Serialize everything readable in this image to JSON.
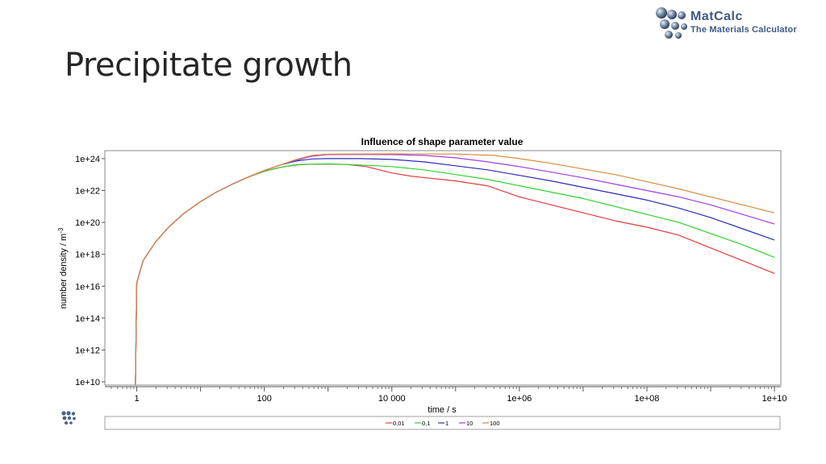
{
  "slide": {
    "title": "Precipitate growth"
  },
  "logo": {
    "line1": "MatCalc",
    "line2": "The Materials Calculator"
  },
  "colors": {
    "series_0_01": "#e23b3b",
    "series_0_1": "#2fd12f",
    "series_1": "#2b2bb8",
    "series_10": "#9f3fe6",
    "series_100": "#d98a3e"
  },
  "chart_data": {
    "type": "line",
    "title": "Influence of shape parameter value",
    "xlabel": "time / s",
    "ylabel": "number density / m",
    "ylabel_superscript": "-3",
    "xscale": "log",
    "yscale": "log",
    "xlim_log10": [
      -0.5,
      10.1
    ],
    "ylim_log10": [
      9.8,
      24.5
    ],
    "xticks": [
      {
        "log": 0,
        "label": "1"
      },
      {
        "log": 2,
        "label": "100"
      },
      {
        "log": 4,
        "label": "10 000"
      },
      {
        "log": 6,
        "label": "1e+06"
      },
      {
        "log": 8,
        "label": "1e+08"
      },
      {
        "log": 10,
        "label": "1e+10"
      }
    ],
    "yticks": [
      {
        "log": 10,
        "label": "1e+10"
      },
      {
        "log": 12,
        "label": "1e+12"
      },
      {
        "log": 14,
        "label": "1e+14"
      },
      {
        "log": 16,
        "label": "1e+16"
      },
      {
        "log": 18,
        "label": "1e+18"
      },
      {
        "log": 20,
        "label": "1e+20"
      },
      {
        "log": 22,
        "label": "1e+22"
      },
      {
        "log": 24,
        "label": "1e+24"
      }
    ],
    "legend_position": "bottom",
    "series": [
      {
        "name": "0,01",
        "color": "#e23b3b",
        "points": [
          [
            -0.02,
            9.8
          ],
          [
            0,
            16.2
          ],
          [
            0.1,
            17.6
          ],
          [
            0.3,
            18.8
          ],
          [
            0.5,
            19.7
          ],
          [
            0.75,
            20.6
          ],
          [
            1,
            21.3
          ],
          [
            1.25,
            21.9
          ],
          [
            1.5,
            22.4
          ],
          [
            1.75,
            22.85
          ],
          [
            2,
            23.2
          ],
          [
            2.25,
            23.45
          ],
          [
            2.5,
            23.6
          ],
          [
            2.75,
            23.65
          ],
          [
            3,
            23.66
          ],
          [
            3.3,
            23.63
          ],
          [
            3.6,
            23.5
          ],
          [
            4,
            23.1
          ],
          [
            4.3,
            22.9
          ],
          [
            5,
            22.6
          ],
          [
            5.5,
            22.3
          ],
          [
            6,
            21.6
          ],
          [
            6.5,
            21.1
          ],
          [
            7,
            20.6
          ],
          [
            7.5,
            20.1
          ],
          [
            8,
            19.7
          ],
          [
            8.5,
            19.2
          ],
          [
            9,
            18.4
          ],
          [
            9.5,
            17.6
          ],
          [
            10,
            16.8
          ]
        ]
      },
      {
        "name": "0,1",
        "color": "#2fd12f",
        "points": [
          [
            -0.02,
            9.8
          ],
          [
            0,
            16.2
          ],
          [
            0.1,
            17.6
          ],
          [
            0.3,
            18.8
          ],
          [
            0.5,
            19.7
          ],
          [
            0.75,
            20.6
          ],
          [
            1,
            21.3
          ],
          [
            1.25,
            21.9
          ],
          [
            1.5,
            22.4
          ],
          [
            1.75,
            22.85
          ],
          [
            2,
            23.2
          ],
          [
            2.25,
            23.45
          ],
          [
            2.5,
            23.62
          ],
          [
            3,
            23.67
          ],
          [
            3.5,
            23.6
          ],
          [
            4,
            23.5
          ],
          [
            4.5,
            23.3
          ],
          [
            5,
            23.0
          ],
          [
            5.5,
            22.7
          ],
          [
            6,
            22.3
          ],
          [
            6.5,
            21.9
          ],
          [
            7,
            21.5
          ],
          [
            7.5,
            21.0
          ],
          [
            8,
            20.5
          ],
          [
            8.5,
            20.0
          ],
          [
            9,
            19.3
          ],
          [
            9.5,
            18.6
          ],
          [
            10,
            17.8
          ]
        ]
      },
      {
        "name": "1",
        "color": "#2b2bb8",
        "points": [
          [
            -0.02,
            9.8
          ],
          [
            0,
            16.2
          ],
          [
            0.1,
            17.6
          ],
          [
            0.3,
            18.8
          ],
          [
            0.5,
            19.7
          ],
          [
            0.75,
            20.6
          ],
          [
            1,
            21.3
          ],
          [
            1.25,
            21.9
          ],
          [
            1.5,
            22.4
          ],
          [
            1.75,
            22.85
          ],
          [
            2,
            23.25
          ],
          [
            2.25,
            23.6
          ],
          [
            2.5,
            23.85
          ],
          [
            2.75,
            23.98
          ],
          [
            3,
            24.0
          ],
          [
            3.5,
            24.0
          ],
          [
            4,
            23.95
          ],
          [
            4.5,
            23.8
          ],
          [
            5,
            23.55
          ],
          [
            5.5,
            23.3
          ],
          [
            6,
            22.95
          ],
          [
            6.5,
            22.6
          ],
          [
            7,
            22.2
          ],
          [
            7.5,
            21.8
          ],
          [
            8,
            21.4
          ],
          [
            8.5,
            20.9
          ],
          [
            9,
            20.3
          ],
          [
            9.5,
            19.6
          ],
          [
            10,
            18.9
          ]
        ]
      },
      {
        "name": "10",
        "color": "#9f3fe6",
        "points": [
          [
            -0.02,
            9.8
          ],
          [
            0,
            16.2
          ],
          [
            0.1,
            17.6
          ],
          [
            0.3,
            18.8
          ],
          [
            0.5,
            19.7
          ],
          [
            0.75,
            20.6
          ],
          [
            1,
            21.3
          ],
          [
            1.25,
            21.9
          ],
          [
            1.5,
            22.4
          ],
          [
            1.75,
            22.85
          ],
          [
            2,
            23.25
          ],
          [
            2.25,
            23.6
          ],
          [
            2.5,
            23.9
          ],
          [
            2.75,
            24.15
          ],
          [
            3,
            24.25
          ],
          [
            3.5,
            24.26
          ],
          [
            4,
            24.25
          ],
          [
            4.5,
            24.2
          ],
          [
            5,
            24.05
          ],
          [
            5.5,
            23.8
          ],
          [
            6,
            23.5
          ],
          [
            6.5,
            23.15
          ],
          [
            7,
            22.8
          ],
          [
            7.5,
            22.4
          ],
          [
            8,
            22.0
          ],
          [
            8.5,
            21.6
          ],
          [
            9,
            21.1
          ],
          [
            9.5,
            20.5
          ],
          [
            10,
            19.9
          ]
        ]
      },
      {
        "name": "100",
        "color": "#d98a3e",
        "points": [
          [
            -0.02,
            9.8
          ],
          [
            0,
            16.2
          ],
          [
            0.1,
            17.6
          ],
          [
            0.3,
            18.8
          ],
          [
            0.5,
            19.7
          ],
          [
            0.75,
            20.6
          ],
          [
            1,
            21.3
          ],
          [
            1.25,
            21.9
          ],
          [
            1.5,
            22.4
          ],
          [
            1.75,
            22.85
          ],
          [
            2,
            23.25
          ],
          [
            2.25,
            23.6
          ],
          [
            2.5,
            23.95
          ],
          [
            2.75,
            24.2
          ],
          [
            3,
            24.28
          ],
          [
            4,
            24.3
          ],
          [
            5,
            24.29
          ],
          [
            5.6,
            24.2
          ],
          [
            6,
            24.0
          ],
          [
            6.5,
            23.7
          ],
          [
            7,
            23.35
          ],
          [
            7.5,
            23.0
          ],
          [
            8,
            22.55
          ],
          [
            8.5,
            22.1
          ],
          [
            9,
            21.6
          ],
          [
            9.5,
            21.1
          ],
          [
            10,
            20.6
          ]
        ]
      }
    ]
  }
}
